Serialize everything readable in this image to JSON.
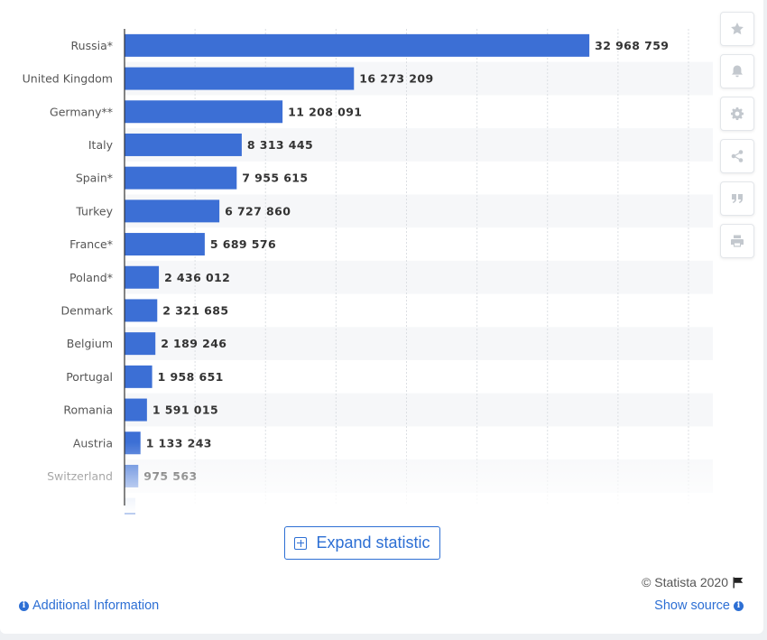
{
  "chart_data": {
    "type": "bar",
    "orientation": "horizontal",
    "categories": [
      "Russia*",
      "United Kingdom",
      "Germany**",
      "Italy",
      "Spain*",
      "Turkey",
      "France*",
      "Poland*",
      "Denmark",
      "Belgium",
      "Portugal",
      "Romania",
      "Austria",
      "Switzerland"
    ],
    "values": [
      32968759,
      16273209,
      11208091,
      8313445,
      7955615,
      6727860,
      5689576,
      2436012,
      2321685,
      2189246,
      1958651,
      1591015,
      1133243,
      975563
    ],
    "value_labels": [
      "32 968 759",
      "16 273 209",
      "11 208 091",
      "8 313 445",
      "7 955 615",
      "6 727 860",
      "5 689 576",
      "2 436 012",
      "2 321 685",
      "2 189 246",
      "1 958 651",
      "1 591 015",
      "1 133 243",
      "975 563"
    ],
    "xlim": [
      0,
      40000000
    ],
    "grid": true,
    "bar_color": "#3c6fd5"
  },
  "toolbar": {
    "icons": [
      "star-icon",
      "bell-icon",
      "gear-icon",
      "share-icon",
      "quote-icon",
      "print-icon"
    ]
  },
  "expand_label": "Expand statistic",
  "footer": {
    "copyright": "© Statista 2020",
    "additional_info": "Additional Information",
    "show_source": "Show source"
  }
}
